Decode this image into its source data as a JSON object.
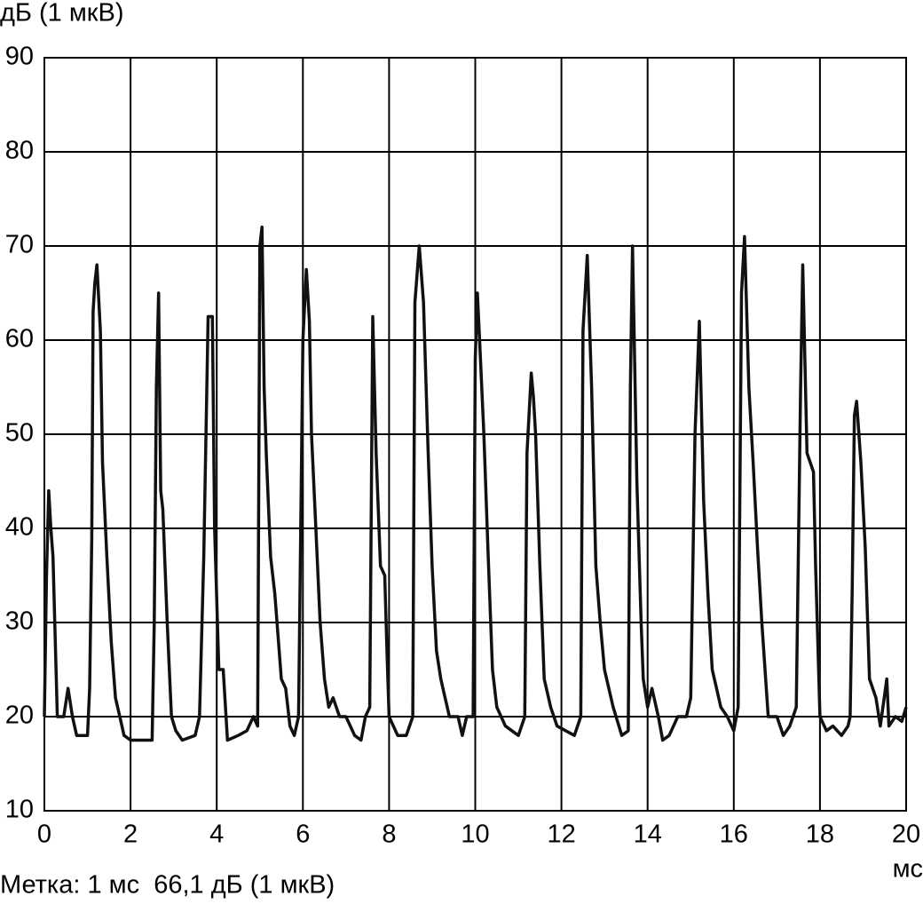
{
  "chart_data": {
    "type": "line",
    "y_label": "дБ (1 мкВ)",
    "x_label": "мс",
    "annotation": "Метка: 1 мс  66,1 дБ (1 мкВ)",
    "xlim": [
      0,
      20
    ],
    "xticks": [
      0,
      2,
      4,
      6,
      8,
      10,
      12,
      14,
      16,
      18,
      20
    ],
    "ylim": [
      10,
      90
    ],
    "yticks": [
      10,
      20,
      30,
      40,
      50,
      60,
      70,
      80,
      90
    ],
    "grid": true,
    "x": [
      0,
      0.05,
      0.1,
      0.15,
      0.2,
      0.3,
      0.45,
      0.55,
      0.65,
      0.75,
      1.0,
      1.05,
      1.1,
      1.13,
      1.17,
      1.22,
      1.3,
      1.35,
      1.45,
      1.55,
      1.65,
      1.75,
      1.85,
      2.0,
      2.3,
      2.5,
      2.55,
      2.6,
      2.65,
      2.7,
      2.75,
      2.85,
      2.95,
      3.05,
      3.2,
      3.5,
      3.6,
      3.7,
      3.8,
      3.9,
      3.95,
      4.05,
      4.15,
      4.25,
      4.5,
      4.7,
      4.85,
      4.95,
      5.0,
      5.05,
      5.1,
      5.15,
      5.25,
      5.35,
      5.5,
      5.6,
      5.7,
      5.8,
      5.9,
      6.0,
      6.08,
      6.15,
      6.2,
      6.3,
      6.4,
      6.5,
      6.6,
      6.7,
      6.85,
      7.0,
      7.2,
      7.35,
      7.45,
      7.55,
      7.62,
      7.7,
      7.8,
      7.9,
      7.95,
      8.0,
      8.2,
      8.4,
      8.55,
      8.6,
      8.7,
      8.8,
      8.9,
      9.0,
      9.1,
      9.2,
      9.3,
      9.4,
      9.6,
      9.7,
      9.8,
      9.95,
      10.0,
      10.05,
      10.1,
      10.2,
      10.3,
      10.4,
      10.5,
      10.7,
      10.85,
      11.0,
      11.15,
      11.2,
      11.3,
      11.35,
      11.4,
      11.5,
      11.6,
      11.75,
      11.9,
      12.1,
      12.3,
      12.45,
      12.5,
      12.6,
      12.7,
      12.8,
      12.9,
      13.0,
      13.2,
      13.4,
      13.55,
      13.6,
      13.65,
      13.75,
      13.85,
      13.9,
      14.0,
      14.1,
      14.25,
      14.35,
      14.5,
      14.7,
      14.9,
      15.0,
      15.1,
      15.2,
      15.3,
      15.4,
      15.5,
      15.6,
      15.7,
      15.85,
      16.0,
      16.1,
      16.18,
      16.25,
      16.35,
      16.45,
      16.55,
      16.65,
      16.8,
      17.0,
      17.15,
      17.3,
      17.45,
      17.55,
      17.6,
      17.7,
      17.85,
      17.9,
      18.0,
      18.15,
      18.3,
      18.5,
      18.65,
      18.7,
      18.75,
      18.8,
      18.85,
      18.95,
      19.05,
      19.15,
      19.3,
      19.4,
      19.55,
      19.6,
      19.75,
      19.9,
      20
    ],
    "series": [
      {
        "color": "#111111",
        "values": [
          20,
          35,
          44,
          40,
          37,
          20,
          20,
          23,
          20,
          18,
          18,
          23,
          39,
          63,
          66,
          68,
          61,
          47,
          37,
          28,
          22,
          20,
          18,
          17.5,
          17.5,
          17.5,
          30,
          55,
          65,
          44,
          42,
          30,
          20,
          18.5,
          17.5,
          18,
          20,
          37,
          62.5,
          62.5,
          40,
          25,
          25,
          17.5,
          18,
          18.5,
          20,
          19,
          70,
          72,
          55,
          48,
          37,
          33,
          24,
          23,
          19,
          18,
          20,
          60,
          67.5,
          62,
          50,
          40,
          30,
          24,
          21,
          22,
          20,
          20,
          18,
          17.5,
          20,
          21,
          62.5,
          48,
          36,
          35,
          27,
          20,
          18,
          18,
          20,
          64,
          70,
          64,
          49,
          36,
          27,
          24,
          22,
          20,
          20,
          18,
          20,
          20,
          58,
          65,
          60,
          50,
          37,
          25,
          21,
          19,
          18.5,
          18,
          20,
          48,
          56.5,
          54,
          50,
          36,
          24,
          21,
          19,
          18.5,
          18,
          20,
          61,
          69,
          55,
          36,
          30,
          25,
          21,
          18,
          18.5,
          55,
          70,
          45,
          30,
          24,
          21,
          23,
          20,
          17.5,
          18,
          20,
          20,
          22,
          50,
          62,
          43,
          33,
          25,
          23,
          21,
          20,
          18.5,
          21,
          65,
          71,
          55,
          47,
          38,
          30,
          20,
          20,
          18,
          19,
          21,
          55,
          68,
          48,
          46,
          36,
          20,
          18.5,
          19,
          18,
          19,
          20,
          34,
          52,
          53.5,
          47,
          38,
          24,
          22,
          19,
          24,
          19,
          20,
          19.5,
          21
        ]
      }
    ]
  }
}
